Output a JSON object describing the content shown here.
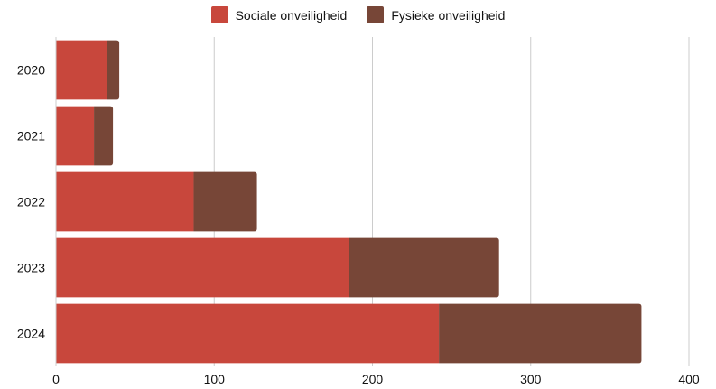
{
  "chart_data": {
    "type": "bar",
    "orientation": "horizontal",
    "stacked": true,
    "categories": [
      "2020",
      "2021",
      "2022",
      "2023",
      "2024"
    ],
    "series": [
      {
        "name": "Sociale onveiligheid",
        "color": "#c8473c",
        "values": [
          32,
          24,
          87,
          185,
          242
        ]
      },
      {
        "name": "Fysieke onveiligheid",
        "color": "#774637",
        "values": [
          8,
          12,
          40,
          95,
          128
        ]
      }
    ],
    "xlim": [
      0,
      400
    ],
    "xticks": [
      "0",
      "100",
      "200",
      "300",
      "400"
    ],
    "grid": "vertical",
    "legend_position": "top-center",
    "title": "",
    "xlabel": "",
    "ylabel": ""
  }
}
